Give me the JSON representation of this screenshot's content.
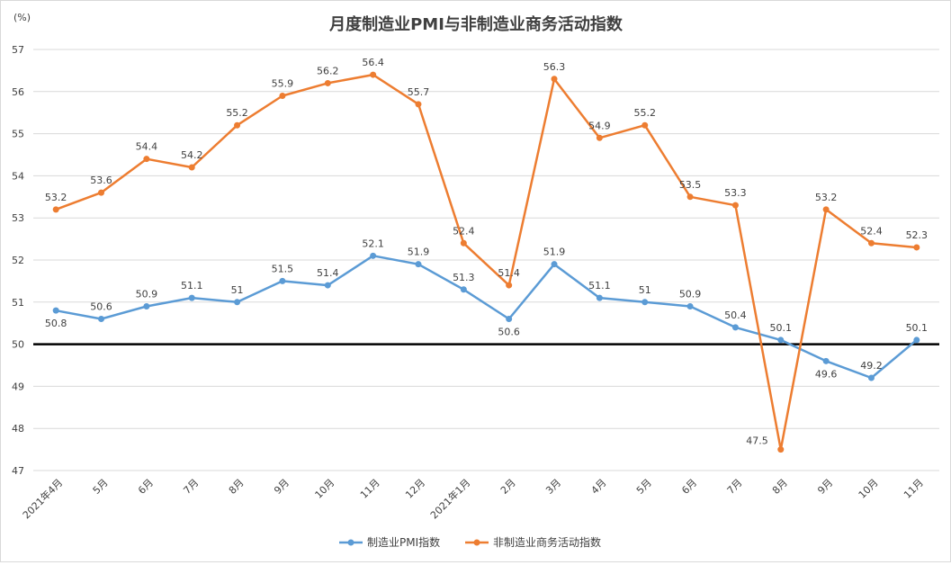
{
  "chart_data": {
    "type": "line",
    "title": "月度制造业PMI与非制造业商务活动指数",
    "ylabel": "(%)",
    "xlabel": "",
    "ylim": [
      47,
      57
    ],
    "yticks": [
      47,
      48,
      49,
      50,
      51,
      52,
      53,
      54,
      55,
      56,
      57
    ],
    "grid": true,
    "legend": "bottom",
    "reference_line": 50,
    "categories": [
      "2021年4月",
      "5月",
      "6月",
      "7月",
      "8月",
      "9月",
      "10月",
      "11月",
      "12月",
      "2021年1月",
      "2月",
      "3月",
      "4月",
      "5月",
      "6月",
      "7月",
      "8月",
      "9月",
      "10月",
      "11月"
    ],
    "series": [
      {
        "name": "制造业PMI指数",
        "color": "#5b9bd5",
        "values": [
          50.8,
          50.6,
          50.9,
          51.1,
          51,
          51.5,
          51.4,
          52.1,
          51.9,
          51.3,
          50.6,
          51.9,
          51.1,
          51,
          50.9,
          50.4,
          50.1,
          49.6,
          49.2,
          50.1
        ],
        "labels": [
          "50.8",
          "50.6",
          "50.9",
          "51.1",
          "51",
          "51.5",
          "51.4",
          "52.1",
          "51.9",
          "51.3",
          "50.6",
          "51.9",
          "51.1",
          "51",
          "50.9",
          "50.4",
          "50.1",
          "49.6",
          "49.2",
          "50.1"
        ]
      },
      {
        "name": "非制造业商务活动指数",
        "color": "#ed7d31",
        "values": [
          53.2,
          53.6,
          54.4,
          54.2,
          55.2,
          55.9,
          56.2,
          56.4,
          55.7,
          52.4,
          51.4,
          56.3,
          54.9,
          55.2,
          53.5,
          53.3,
          47.5,
          53.2,
          52.4,
          52.3
        ],
        "labels": [
          "53.2",
          "53.6",
          "54.4",
          "54.2",
          "55.2",
          "55.9",
          "56.2",
          "56.4",
          "55.7",
          "52.4",
          "51.4",
          "56.3",
          "54.9",
          "55.2",
          "53.5",
          "53.3",
          "47.5",
          "53.2",
          "52.4",
          "52.3"
        ]
      }
    ]
  }
}
